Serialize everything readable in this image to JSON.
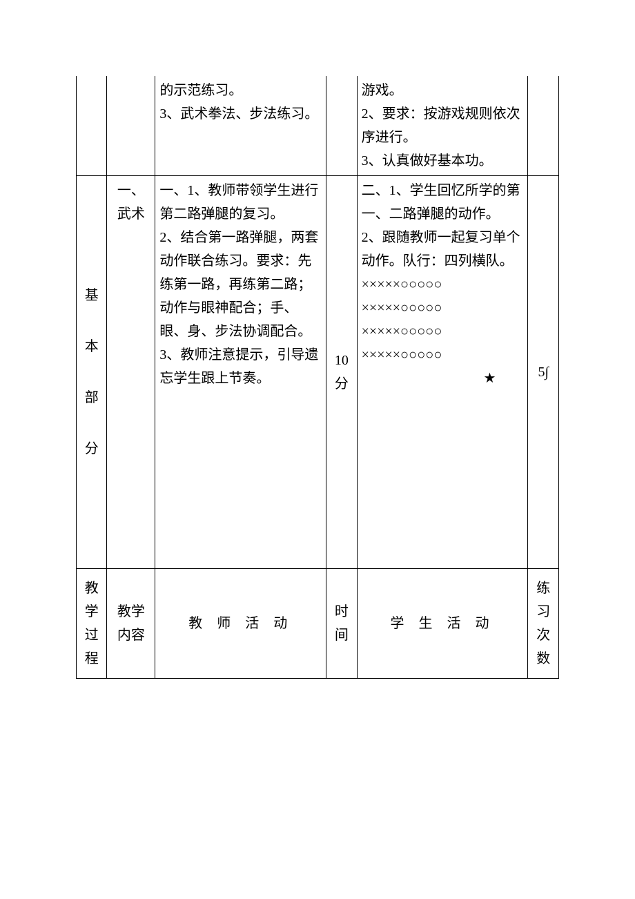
{
  "row1": {
    "teacher": "的示范练习。\n3、武术拳法、步法练习。",
    "student": "游戏。\n2、要求：按游戏规则依次序进行。\n3、认真做好基本功。"
  },
  "row2": {
    "section_chars": [
      "基",
      "本",
      "部",
      "分"
    ],
    "content": "一、武术",
    "teacher": "一、1、教师带领学生进行第二路弹腿的复习。\n2、结合第一路弹腿，两套动作联合练习。要求：先练第一路，再练第二路；动作与眼神配合；手、眼、身、步法协调配合。\n3、教师注意提示，引导遗忘学生跟上节奏。",
    "time": "10分",
    "student_intro": "二、1、学生回忆所学的第一、二路弹腿的动作。\n2、跟随教师一起复习单个动作。队行：四列横队。",
    "formation_lines": [
      "×××××○○○○○",
      "×××××○○○○○",
      "×××××○○○○○",
      "×××××○○○○○"
    ],
    "star": "★",
    "count": "5∫"
  },
  "header": {
    "section": "教学过程",
    "content": "教学内容",
    "teacher": "教 师 活 动",
    "time": "时间",
    "student": "学 生 活 动",
    "count": "练习次数"
  },
  "colors": {
    "text": "#000000",
    "border": "#000000",
    "background": "#ffffff"
  },
  "fontsize_pt": 15
}
